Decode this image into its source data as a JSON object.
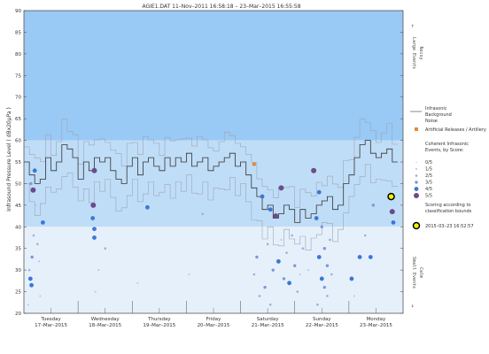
{
  "chart_data": {
    "type": "scatter",
    "title": "AGIE1.DAT   11–Nov–2011 16:58:18   –   23–Mar–2015 16:55:58",
    "ylabel": "Infrasound Pressure Level  ( dBx20µPa )",
    "ylim": [
      20,
      90
    ],
    "yticks": [
      20,
      25,
      30,
      35,
      40,
      45,
      50,
      55,
      60,
      65,
      70,
      75,
      80,
      85,
      90
    ],
    "xlim": [
      0,
      7
    ],
    "days": [
      {
        "name": "Tuesday",
        "date": "17–Mar–2015"
      },
      {
        "name": "Wednesday",
        "date": "18–Mar–2015"
      },
      {
        "name": "Thursday",
        "date": "19–Mar–2015"
      },
      {
        "name": "Friday",
        "date": "20–Mar–2015"
      },
      {
        "name": "Saturday",
        "date": "21–Mar–2015"
      },
      {
        "name": "Sunday",
        "date": "22–Mar–2015"
      },
      {
        "name": "Monday",
        "date": "23–Mar–2015"
      }
    ],
    "bands": [
      {
        "name": "Large Events",
        "from": 60,
        "to": 90,
        "color": "#99c9f5"
      },
      {
        "name": "Noisy",
        "from": 40,
        "to": 60,
        "color": "#c0ddf7"
      },
      {
        "name": "Calm",
        "from": 20,
        "to": 40,
        "color": "#e6f0fb"
      }
    ],
    "side_labels": {
      "large_events": "Large Events",
      "noisy": "Noisy",
      "small_events": "Small Events",
      "calm": "Calm"
    },
    "background_noise": {
      "name": "Infrasonic Background Noise",
      "color": "#333333",
      "x": [
        0,
        0.1,
        0.2,
        0.3,
        0.4,
        0.5,
        0.6,
        0.7,
        0.8,
        0.9,
        1.0,
        1.1,
        1.2,
        1.3,
        1.4,
        1.5,
        1.6,
        1.7,
        1.8,
        1.9,
        2.0,
        2.1,
        2.2,
        2.3,
        2.4,
        2.5,
        2.6,
        2.7,
        2.8,
        2.9,
        3.0,
        3.1,
        3.2,
        3.3,
        3.4,
        3.5,
        3.6,
        3.7,
        3.8,
        3.9,
        4.0,
        4.1,
        4.2,
        4.3,
        4.4,
        4.5,
        4.6,
        4.7,
        4.8,
        4.9,
        5.0,
        5.1,
        5.2,
        5.3,
        5.4,
        5.5,
        5.6,
        5.7,
        5.8,
        5.9,
        6.0,
        6.1,
        6.2,
        6.3,
        6.4,
        6.5,
        6.6,
        6.7,
        6.8
      ],
      "y": [
        55,
        52,
        50,
        51,
        56,
        53,
        55,
        59,
        58,
        56,
        51,
        55,
        53,
        56,
        55,
        56,
        53,
        51,
        50,
        54,
        56,
        52,
        55,
        56,
        54,
        53,
        56,
        54,
        56,
        55,
        57,
        54,
        55,
        56,
        53,
        54,
        55,
        56,
        57,
        54,
        55,
        52,
        49,
        47,
        44,
        45,
        42,
        43,
        45,
        44,
        41,
        44,
        42,
        43,
        45,
        46,
        47,
        44,
        45,
        50,
        52,
        56,
        59,
        60,
        57,
        56,
        57,
        58,
        55
      ]
    },
    "artificial_releases": {
      "name": "Artificial Releases / Artillery",
      "color": "#e08a3a",
      "points": [
        {
          "x": 4.25,
          "y": 54.5
        }
      ]
    },
    "coherent_title": "Coherent Infrasonic Events, by Score:",
    "score_legend": [
      {
        "label": "0/5",
        "color": "#c8d4ea",
        "r": 0.8
      },
      {
        "label": "1/5",
        "color": "#b4c4e4",
        "r": 1.0
      },
      {
        "label": "2/5",
        "color": "#9ab0de",
        "r": 1.3
      },
      {
        "label": "3/5",
        "color": "#7c98d6",
        "r": 1.7
      },
      {
        "label": "4/5",
        "color": "#3a78d6",
        "r": 2.4
      },
      {
        "label": "5/5",
        "color": "#6a4c8c",
        "r": 3.0
      }
    ],
    "scoring_note": "Scoring according to classification bounds",
    "highlight": {
      "label": "2015–03–23 16:52:57",
      "x": 6.78,
      "y": 47,
      "color": "#f0f000"
    },
    "events": [
      {
        "x": 0.13,
        "y": 50,
        "score": 3
      },
      {
        "x": 0.17,
        "y": 48.5,
        "score": 5
      },
      {
        "x": 0.2,
        "y": 53,
        "score": 4
      },
      {
        "x": 0.1,
        "y": 30,
        "score": 2
      },
      {
        "x": 0.12,
        "y": 28,
        "score": 4
      },
      {
        "x": 0.15,
        "y": 33,
        "score": 3
      },
      {
        "x": 0.18,
        "y": 38,
        "score": 2
      },
      {
        "x": 0.22,
        "y": 45,
        "score": 1
      },
      {
        "x": 0.25,
        "y": 36,
        "score": 2
      },
      {
        "x": 0.14,
        "y": 26.5,
        "score": 4
      },
      {
        "x": 0.28,
        "y": 32,
        "score": 1
      },
      {
        "x": 0.35,
        "y": 41,
        "score": 4
      },
      {
        "x": 0.3,
        "y": 24,
        "score": 1
      },
      {
        "x": 0.08,
        "y": 22,
        "score": 1
      },
      {
        "x": 1.3,
        "y": 53,
        "score": 5
      },
      {
        "x": 1.28,
        "y": 45,
        "score": 5
      },
      {
        "x": 1.27,
        "y": 42,
        "score": 4
      },
      {
        "x": 1.3,
        "y": 39.5,
        "score": 4
      },
      {
        "x": 1.3,
        "y": 37.5,
        "score": 4
      },
      {
        "x": 1.5,
        "y": 35,
        "score": 2
      },
      {
        "x": 1.32,
        "y": 25,
        "score": 1
      },
      {
        "x": 1.38,
        "y": 30,
        "score": 1
      },
      {
        "x": 2.28,
        "y": 44.5,
        "score": 4
      },
      {
        "x": 2.1,
        "y": 27,
        "score": 1
      },
      {
        "x": 3.3,
        "y": 43,
        "score": 2
      },
      {
        "x": 3.05,
        "y": 29,
        "score": 1
      },
      {
        "x": 4.4,
        "y": 47,
        "score": 4
      },
      {
        "x": 4.55,
        "y": 44,
        "score": 4
      },
      {
        "x": 4.65,
        "y": 42.5,
        "score": 5
      },
      {
        "x": 4.75,
        "y": 49,
        "score": 5
      },
      {
        "x": 4.3,
        "y": 33,
        "score": 3
      },
      {
        "x": 4.5,
        "y": 36,
        "score": 2
      },
      {
        "x": 4.6,
        "y": 30,
        "score": 3
      },
      {
        "x": 4.7,
        "y": 32,
        "score": 4
      },
      {
        "x": 4.8,
        "y": 28,
        "score": 3
      },
      {
        "x": 4.85,
        "y": 34,
        "score": 2
      },
      {
        "x": 4.9,
        "y": 27,
        "score": 4
      },
      {
        "x": 4.95,
        "y": 38,
        "score": 2
      },
      {
        "x": 5.0,
        "y": 31,
        "score": 3
      },
      {
        "x": 5.05,
        "y": 25,
        "score": 2
      },
      {
        "x": 4.35,
        "y": 24,
        "score": 2
      },
      {
        "x": 4.45,
        "y": 26,
        "score": 3
      },
      {
        "x": 4.55,
        "y": 22,
        "score": 2
      },
      {
        "x": 5.1,
        "y": 29,
        "score": 1
      },
      {
        "x": 5.15,
        "y": 35,
        "score": 2
      },
      {
        "x": 4.25,
        "y": 29,
        "score": 2
      },
      {
        "x": 4.75,
        "y": 37,
        "score": 1
      },
      {
        "x": 5.35,
        "y": 53,
        "score": 5
      },
      {
        "x": 5.45,
        "y": 48,
        "score": 4
      },
      {
        "x": 5.4,
        "y": 42,
        "score": 4
      },
      {
        "x": 5.5,
        "y": 40,
        "score": 3
      },
      {
        "x": 5.55,
        "y": 35,
        "score": 3
      },
      {
        "x": 5.6,
        "y": 31,
        "score": 3
      },
      {
        "x": 5.5,
        "y": 28,
        "score": 4
      },
      {
        "x": 5.55,
        "y": 26,
        "score": 3
      },
      {
        "x": 5.6,
        "y": 24,
        "score": 2
      },
      {
        "x": 5.45,
        "y": 33,
        "score": 4
      },
      {
        "x": 5.65,
        "y": 37,
        "score": 2
      },
      {
        "x": 5.42,
        "y": 22,
        "score": 2
      },
      {
        "x": 5.25,
        "y": 30,
        "score": 1
      },
      {
        "x": 5.68,
        "y": 29,
        "score": 2
      },
      {
        "x": 6.2,
        "y": 33,
        "score": 4
      },
      {
        "x": 6.4,
        "y": 33,
        "score": 4
      },
      {
        "x": 6.45,
        "y": 45,
        "score": 3
      },
      {
        "x": 6.8,
        "y": 43.5,
        "score": 5
      },
      {
        "x": 6.82,
        "y": 41,
        "score": 4
      },
      {
        "x": 6.05,
        "y": 28,
        "score": 4
      },
      {
        "x": 6.3,
        "y": 38,
        "score": 2
      },
      {
        "x": 6.1,
        "y": 24,
        "score": 1
      }
    ]
  }
}
